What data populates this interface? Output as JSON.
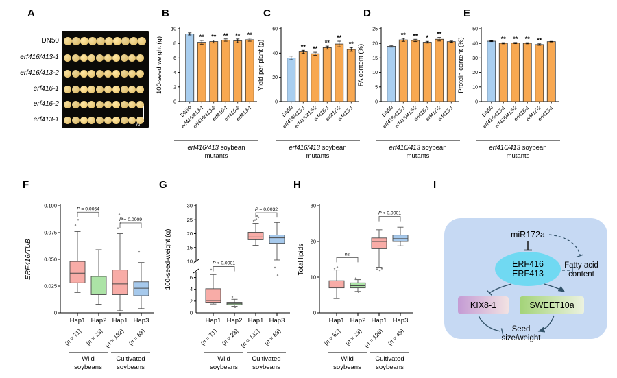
{
  "panel_a": {
    "letter": "A",
    "rows": [
      {
        "label": "DN50",
        "italic": false,
        "seeds": 10
      },
      {
        "label": "erf416/413-1",
        "italic": true,
        "seeds": 10
      },
      {
        "label": "erf416/413-2",
        "italic": true,
        "seeds": 10
      },
      {
        "label": "erf416-1",
        "italic": true,
        "seeds": 10
      },
      {
        "label": "erf416-2",
        "italic": true,
        "seeds": 10
      },
      {
        "label": "erf413-1",
        "italic": true,
        "seeds": 10
      }
    ],
    "scale_label": "2cm"
  },
  "chart_data": [
    {
      "id": "B",
      "type": "bar",
      "ylabel": "100-seed weight (g)",
      "ylim": [
        0,
        10
      ],
      "yticks": [
        0,
        2,
        4,
        6,
        8,
        10
      ],
      "categories": [
        "DN50",
        "erf416/413-1",
        "erf416/413-2",
        "erf416-1",
        "erf416-2",
        "erf413-1"
      ],
      "xlabel_italic": [
        false,
        true,
        true,
        true,
        true,
        true
      ],
      "values": [
        9.3,
        8.15,
        8.25,
        8.45,
        8.35,
        8.5
      ],
      "errors": [
        0.15,
        0.25,
        0.2,
        0.15,
        0.25,
        0.2
      ],
      "significance": [
        "",
        "**",
        "**",
        "**",
        "**",
        "**"
      ],
      "bar_colors": [
        "#A9CEEF",
        "#F8A851",
        "#F8A851",
        "#F8A851",
        "#F8A851",
        "#F8A851"
      ],
      "caption": {
        "italic": "erf416/413",
        "rest": " soybean",
        "line2": "mutants"
      }
    },
    {
      "id": "C",
      "type": "bar",
      "ylabel": "Yield per plant (g)",
      "ylim": [
        0,
        60
      ],
      "yticks": [
        0,
        20,
        40,
        60
      ],
      "categories": [
        "DN50",
        "erf416/413-1",
        "erf416/413-2",
        "erf416-1",
        "erf416-2",
        "erf413-1"
      ],
      "xlabel_italic": [
        false,
        true,
        true,
        true,
        true,
        true
      ],
      "values": [
        36,
        41,
        39.5,
        44.5,
        47.5,
        43
      ],
      "errors": [
        1.5,
        1.3,
        1.2,
        1.3,
        2.3,
        1.6
      ],
      "significance": [
        "",
        "**",
        "**",
        "**",
        "**",
        "**"
      ],
      "bar_colors": [
        "#A9CEEF",
        "#F8A851",
        "#F8A851",
        "#F8A851",
        "#F8A851",
        "#F8A851"
      ],
      "caption": {
        "italic": "erf416/413",
        "rest": " soybean",
        "line2": "mutants"
      }
    },
    {
      "id": "D",
      "type": "bar",
      "ylabel": "FA content (%)",
      "ylim": [
        0,
        25
      ],
      "yticks": [
        0,
        5,
        10,
        15,
        20,
        25
      ],
      "categories": [
        "DN50",
        "erf416/413-1",
        "erf416/413-2",
        "erf416-1",
        "erf416-2",
        "erf413-1"
      ],
      "xlabel_italic": [
        false,
        true,
        true,
        true,
        true,
        true
      ],
      "values": [
        19,
        21.2,
        21,
        20.4,
        21.4,
        20.6
      ],
      "errors": [
        0.3,
        0.5,
        0.4,
        0.3,
        0.6,
        0.2
      ],
      "significance": [
        "",
        "**",
        "**",
        "*",
        "**",
        ""
      ],
      "bar_colors": [
        "#A9CEEF",
        "#F8A851",
        "#F8A851",
        "#F8A851",
        "#F8A851",
        "#F8A851"
      ],
      "caption": {
        "italic": "erf416/413",
        "rest": " soybean",
        "line2": "mutants"
      }
    },
    {
      "id": "E",
      "type": "bar",
      "ylabel": "Protein content (%)",
      "ylim": [
        0,
        50
      ],
      "yticks": [
        0,
        10,
        20,
        30,
        40,
        50
      ],
      "categories": [
        "DN50",
        "erf416/413-1",
        "erf416/413-2",
        "erf416-1",
        "erf416-2",
        "erf413-1"
      ],
      "xlabel_italic": [
        false,
        true,
        true,
        true,
        true,
        true
      ],
      "values": [
        41.5,
        40.1,
        40.2,
        40.1,
        39.2,
        41.2
      ],
      "errors": [
        0.3,
        0.4,
        0.4,
        0.4,
        0.5,
        0.2
      ],
      "significance": [
        "",
        "**",
        "**",
        "**",
        "**",
        ""
      ],
      "bar_colors": [
        "#A9CEEF",
        "#F8A851",
        "#F8A851",
        "#F8A851",
        "#F8A851",
        "#F8A851"
      ],
      "caption": {
        "italic": "erf416/413",
        "rest": " soybean",
        "line2": "mutants"
      }
    },
    {
      "id": "F",
      "type": "box",
      "ylabel": "ERF416/TUB",
      "ylabel_italic": true,
      "ylim": [
        0,
        0.1
      ],
      "yticks": [
        0,
        0.025,
        0.05,
        0.075,
        0.1
      ],
      "ytick_labels": [
        "0",
        "0.025",
        "0.050",
        "0.075",
        "0.100"
      ],
      "boxes": [
        {
          "x_label": "Hap1",
          "n_label": "(n = 71)",
          "color": "#F8ACA7",
          "lo": 0.019,
          "q1": 0.028,
          "median": 0.037,
          "q3": 0.048,
          "hi": 0.076,
          "outliers": [
            0.082,
            0.087
          ]
        },
        {
          "x_label": "Hap2",
          "n_label": "(n = 23)",
          "color": "#ACE3A6",
          "lo": 0.008,
          "q1": 0.017,
          "median": 0.026,
          "q3": 0.034,
          "hi": 0.059,
          "outliers": []
        },
        {
          "x_label": "Hap1",
          "n_label": "(n = 132)",
          "color": "#F8ACA7",
          "lo": 0.002,
          "q1": 0.017,
          "median": 0.027,
          "q3": 0.04,
          "hi": 0.074,
          "outliers": [
            0.079,
            0.084,
            0.088,
            0.092
          ]
        },
        {
          "x_label": "Hap3",
          "n_label": "(n = 63)",
          "color": "#A6C9EC",
          "lo": 0.004,
          "q1": 0.016,
          "median": 0.023,
          "q3": 0.029,
          "hi": 0.047,
          "outliers": [
            0.057
          ]
        }
      ],
      "comparisons": [
        {
          "a": 0,
          "b": 1,
          "y": 0.094,
          "label": "P = 0.0054"
        },
        {
          "a": 2,
          "b": 3,
          "y": 0.084,
          "label": "P = 0.0009"
        }
      ],
      "group_labels": [
        [
          "Wild",
          "soybeans"
        ],
        [
          "Cultivated",
          "soybeans"
        ]
      ]
    },
    {
      "id": "G",
      "type": "box",
      "ylabel": "100-seed-weight (g)",
      "ylim": [
        0,
        30
      ],
      "axis_break": {
        "lower_max": 7,
        "upper_min": 10,
        "lower_ticks": [
          2,
          4,
          6
        ],
        "upper_ticks": [
          10,
          15,
          20,
          25,
          30
        ]
      },
      "boxes": [
        {
          "x_label": "Hap1",
          "n_label": "(n = 71)",
          "color": "#F8ACA7",
          "lo": 1.5,
          "q1": 1.8,
          "median": 2.1,
          "q3": 4.1,
          "hi": 6.5,
          "outliers": [
            7.6
          ]
        },
        {
          "x_label": "Hap2",
          "n_label": "(n = 23)",
          "color": "#ACE3A6",
          "lo": 1.1,
          "q1": 1.4,
          "median": 1.6,
          "q3": 1.8,
          "hi": 2.3,
          "outliers": [
            2.7,
            0.95
          ]
        },
        {
          "x_label": "Hap1",
          "n_label": "(n = 132)",
          "color": "#F8ACA7",
          "lo": 15.8,
          "q1": 17.8,
          "median": 18.8,
          "q3": 20.5,
          "hi": 23.7,
          "outliers": [
            24.6,
            25.2,
            25.8,
            24.9,
            26.3
          ]
        },
        {
          "x_label": "Hap3",
          "n_label": "(n = 63)",
          "color": "#A6C9EC",
          "lo": 10.5,
          "q1": 16.5,
          "median": 18.5,
          "q3": 19.5,
          "hi": 24,
          "outliers": [
            8.2,
            6.4
          ]
        }
      ],
      "comparisons": [
        {
          "a": 0,
          "b": 1,
          "y": 8.5,
          "label": "P < 0.0001"
        },
        {
          "a": 2,
          "b": 3,
          "y": 27.5,
          "label": "P = 0.0032"
        }
      ],
      "group_labels": [
        [
          "Wild",
          "soybeans"
        ],
        [
          "Cultivated",
          "soybeans"
        ]
      ]
    },
    {
      "id": "H",
      "type": "box",
      "ylabel": "Total lipids",
      "ylim": [
        0,
        30
      ],
      "yticks": [
        0,
        10,
        20,
        30
      ],
      "boxes": [
        {
          "x_label": "Hap1",
          "n_label": "(n = 62)",
          "color": "#F8ACA7",
          "lo": 4,
          "q1": 7,
          "median": 7.8,
          "q3": 9,
          "hi": 12,
          "outliers": [
            12.4,
            12.8
          ]
        },
        {
          "x_label": "Hap2",
          "n_label": "(n = 23)",
          "color": "#ACE3A6",
          "lo": 6,
          "q1": 7,
          "median": 7.6,
          "q3": 8.4,
          "hi": 9.3,
          "outliers": [
            9.7,
            5.8
          ]
        },
        {
          "x_label": "Hap1",
          "n_label": "(n = 126)",
          "color": "#F8ACA7",
          "lo": 12.8,
          "q1": 18,
          "median": 20,
          "q3": 21,
          "hi": 23.3,
          "outliers": [
            12.2,
            11.9,
            12.4
          ]
        },
        {
          "x_label": "Hap3",
          "n_label": "(n = 49)",
          "color": "#A6C9EC",
          "lo": 18.8,
          "q1": 20,
          "median": 20.8,
          "q3": 21.8,
          "hi": 24,
          "outliers": []
        }
      ],
      "comparisons": [
        {
          "a": 0,
          "b": 1,
          "y": 15.5,
          "label": "ns"
        },
        {
          "a": 2,
          "b": 3,
          "y": 27,
          "label": "P < 0.0001"
        }
      ],
      "group_labels": [
        [
          "Wild",
          "soybeans"
        ],
        [
          "Cultivated",
          "soybeans"
        ]
      ]
    }
  ],
  "diagram": {
    "letter": "I",
    "nodes": {
      "mir": "miR172a",
      "erf_line1": "ERF416",
      "erf_line2": "ERF413",
      "kix": "KIX8-1",
      "sweet": "SWEET10a",
      "fatty_line1": "Fatty acid",
      "fatty_line2": "content",
      "seed_line1": "Seed",
      "seed_line2": "size/weight"
    },
    "edges": [
      {
        "from": "miR172a",
        "to": "ERF416/ERF413",
        "type": "inhibits",
        "style": "solid"
      },
      {
        "from": "miR172a",
        "to": "Fatty acid content",
        "type": "inhibits",
        "style": "dashed"
      },
      {
        "from": "ERF416/ERF413",
        "to": "Fatty acid content",
        "type": "inhibits",
        "style": "dashed"
      },
      {
        "from": "ERF416/ERF413",
        "to": "KIX8-1",
        "type": "inhibits",
        "style": "solid"
      },
      {
        "from": "ERF416/ERF413",
        "to": "SWEET10a",
        "type": "activates",
        "style": "solid"
      },
      {
        "from": "KIX8-1",
        "to": "Seed size/weight",
        "type": "inhibits",
        "style": "solid"
      },
      {
        "from": "SWEET10a",
        "to": "Seed size/weight",
        "type": "activates",
        "style": "solid"
      }
    ],
    "colors": {
      "background": "#C6D9F3",
      "ellipse": "#70D9F2",
      "kix_left": "#C49BD4",
      "kix_right": "#F2E2E2",
      "sweet_left": "#A3D378",
      "sweet_right": "#ECF2E0",
      "arrow": "#33536A"
    }
  },
  "colors": {
    "control_bar": "#A9CEEF",
    "mutant_bar": "#F8A851",
    "box_pink": "#F8ACA7",
    "box_green": "#ACE3A6",
    "box_blue": "#A6C9EC",
    "seed": "#EACA7A",
    "photo_background": "#0B0A07"
  }
}
